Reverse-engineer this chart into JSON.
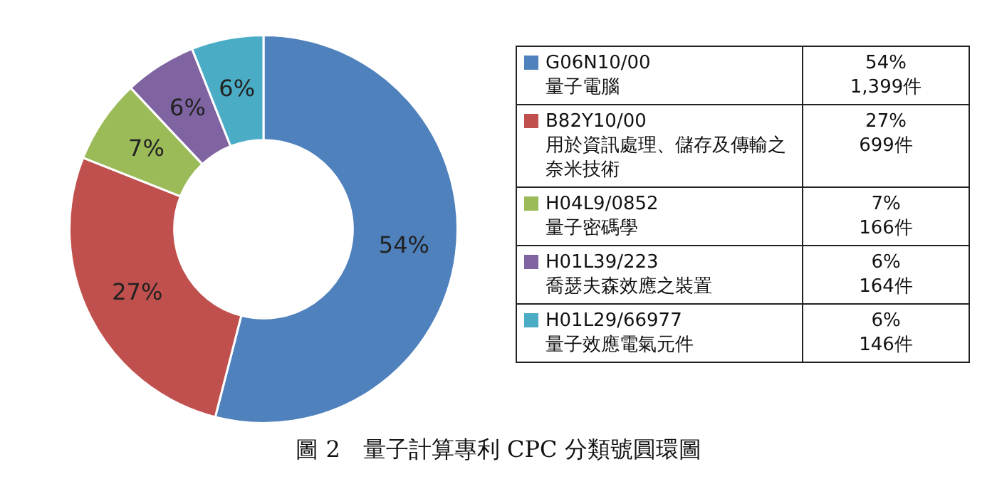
{
  "chart_data": {
    "type": "donut",
    "title": "圖 2　量子計算專利 CPC 分類號圓環圖",
    "categories": [
      "G06N10/00\n量子電腦",
      "B82Y10/00\n用於資訊處理、儲存及傳輸之奈米技術",
      "H04L9/0852\n量子密碼學",
      "H01L39/223\n喬瑟夫森效應之裝置",
      "H01L29/66977\n量子效應電氣元件"
    ],
    "values": [
      54,
      27,
      7,
      6,
      6
    ],
    "colors": [
      "#4f81bd",
      "#c0504d",
      "#9bbb59",
      "#8064a2",
      "#4bacc6"
    ],
    "value_labels": [
      "54%",
      "27%",
      "7%",
      "6%",
      "6%"
    ],
    "annotations": [
      "1,399件",
      "699件",
      "166件",
      "164件",
      "146件"
    ],
    "legend": "right"
  }
}
